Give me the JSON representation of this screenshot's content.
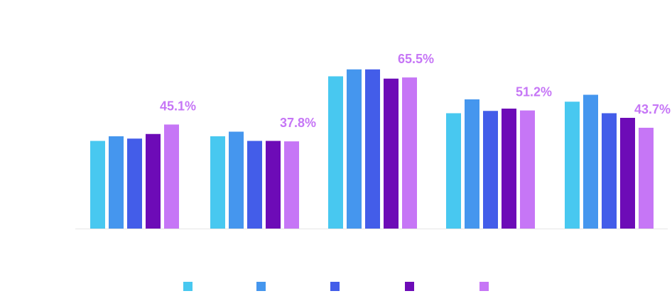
{
  "chart_data": {
    "type": "bar",
    "title": "",
    "xlabel": "",
    "ylabel": "",
    "ylim": [
      0,
      100
    ],
    "grid": false,
    "legend": {
      "placement": "bottom",
      "entries": [
        "",
        "",
        "",
        "",
        ""
      ]
    },
    "categories": [
      "",
      "",
      "",
      "",
      ""
    ],
    "series": [
      {
        "color": "#48c8f0",
        "values": [
          38,
          40,
          66,
          50,
          55
        ]
      },
      {
        "color": "#4596ee",
        "values": [
          40,
          42,
          69,
          56,
          58
        ]
      },
      {
        "color": "#435de9",
        "values": [
          39,
          38,
          69,
          51,
          50
        ]
      },
      {
        "color": "#6d0bb7",
        "values": [
          41,
          38,
          65,
          52,
          48
        ]
      },
      {
        "color": "#c676f6",
        "values": [
          45.1,
          37.8,
          65.5,
          51.2,
          43.7
        ]
      }
    ],
    "data_labels": [
      "45.1%",
      "37.8%",
      "65.5%",
      "51.2%",
      "43.7%"
    ],
    "data_label_color": "#c676f6",
    "axis_line_color": "#e6e6e6"
  }
}
